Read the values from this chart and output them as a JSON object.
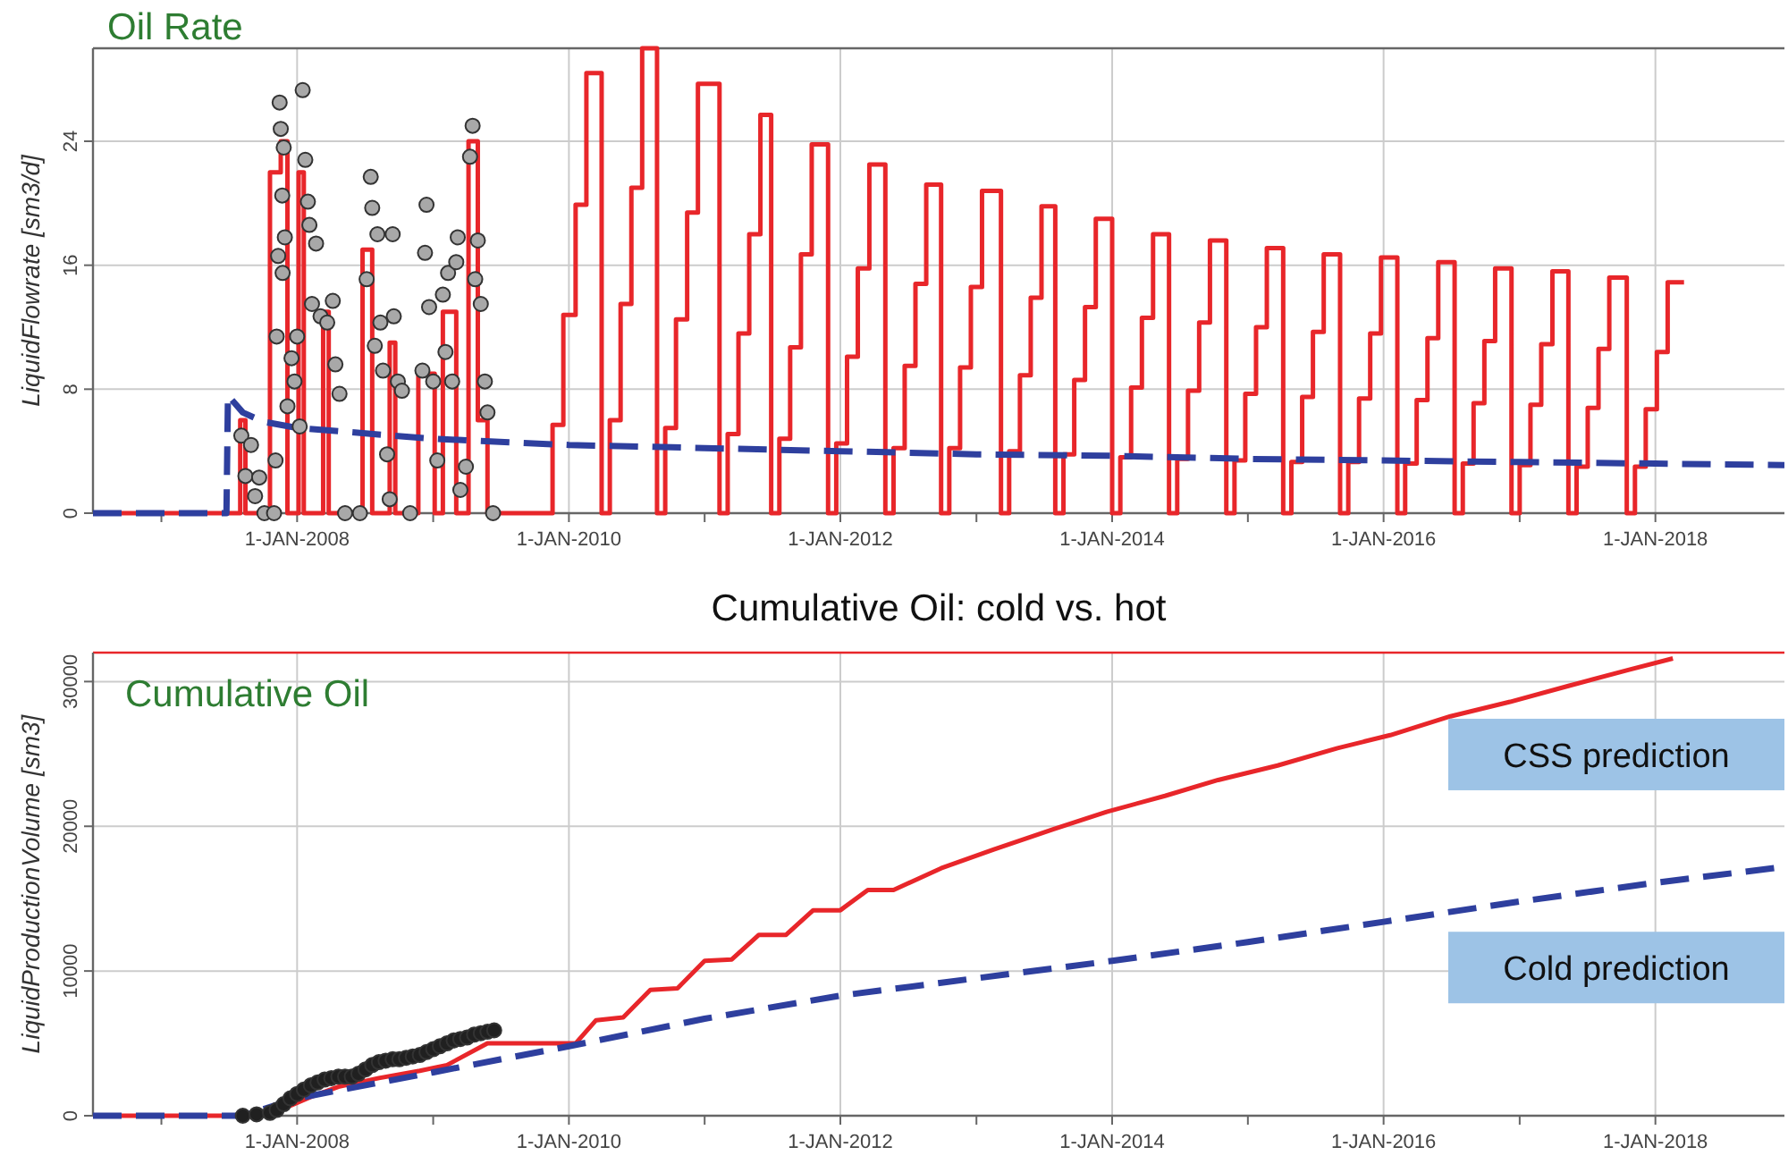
{
  "chart_data": [
    {
      "type": "line",
      "title": "Oil Rate",
      "ylabel": "LiquidFlowrate [sm3/d]",
      "xlim": [
        "2006-07-01",
        "2018-12-14"
      ],
      "ylim": [
        0,
        30
      ],
      "xticks": [
        {
          "value": "2007-01-01",
          "label": null
        },
        {
          "value": "2008-01-01",
          "label": "1-JAN-2008"
        },
        {
          "value": "2009-01-01",
          "label": null
        },
        {
          "value": "2010-01-01",
          "label": "1-JAN-2010"
        },
        {
          "value": "2011-01-01",
          "label": null
        },
        {
          "value": "2012-01-01",
          "label": "1-JAN-2012"
        },
        {
          "value": "2013-01-01",
          "label": null
        },
        {
          "value": "2014-01-01",
          "label": "1-JAN-2014"
        },
        {
          "value": "2015-01-01",
          "label": null
        },
        {
          "value": "2016-01-01",
          "label": "1-JAN-2016"
        },
        {
          "value": "2017-01-01",
          "label": null
        },
        {
          "value": "2018-01-01",
          "label": "1-JAN-2018"
        }
      ],
      "yticks": [
        0,
        8,
        16,
        24
      ],
      "grid": true,
      "series": [
        {
          "type": "step",
          "color": "#e8262a",
          "line_style": "solid",
          "x": [
            "2006-07-01",
            "2007-08-01",
            "2007-08-15",
            "2007-10-20",
            "2007-11-18",
            "2007-12-06",
            "2008-01-05",
            "2008-01-19",
            "2008-03-11",
            "2008-03-26",
            "2008-06-25",
            "2008-07-21",
            "2008-09-06",
            "2008-09-21",
            "2008-11-22",
            "2009-01-05",
            "2009-01-27",
            "2009-03-04",
            "2009-04-06",
            "2009-05-01",
            "2009-05-27",
            "2009-11-18",
            "2009-12-17",
            "2010-01-19",
            "2010-02-17",
            "2010-03-30",
            "2010-04-21",
            "2010-05-20",
            "2010-06-18",
            "2010-07-17",
            "2010-08-26",
            "2010-09-17",
            "2010-10-16",
            "2010-11-15",
            "2010-12-14",
            "2011-02-10",
            "2011-03-04",
            "2011-04-02",
            "2011-05-01",
            "2011-05-31",
            "2011-06-29",
            "2011-07-21",
            "2011-08-19",
            "2011-09-17",
            "2011-10-16",
            "2011-11-29",
            "2011-12-21",
            "2012-01-19",
            "2012-02-17",
            "2012-03-19",
            "2012-05-01",
            "2012-05-23",
            "2012-06-22",
            "2012-07-21",
            "2012-08-19",
            "2012-09-28",
            "2012-10-20",
            "2012-11-18",
            "2012-12-17",
            "2013-01-16",
            "2013-03-08",
            "2013-03-30",
            "2013-04-28",
            "2013-05-27",
            "2013-06-25",
            "2013-08-01",
            "2013-08-23",
            "2013-09-21",
            "2013-10-20",
            "2013-11-18",
            "2014-01-01",
            "2014-01-23",
            "2014-02-21",
            "2014-03-22",
            "2014-04-21",
            "2014-06-03",
            "2014-06-25",
            "2014-07-24",
            "2014-08-23",
            "2014-09-21",
            "2014-11-04",
            "2014-11-26",
            "2014-12-25",
            "2015-01-23",
            "2015-02-21",
            "2015-04-06",
            "2015-04-28",
            "2015-05-27",
            "2015-06-25",
            "2015-07-24",
            "2015-09-06",
            "2015-09-28",
            "2015-10-27",
            "2015-11-26",
            "2015-12-25",
            "2016-02-07",
            "2016-02-28",
            "2016-03-30",
            "2016-04-28",
            "2016-05-27",
            "2016-07-10",
            "2016-08-01",
            "2016-08-30",
            "2016-09-28",
            "2016-10-27",
            "2016-12-10",
            "2017-01-01",
            "2017-01-30",
            "2017-02-28",
            "2017-03-30",
            "2017-05-12",
            "2017-06-03",
            "2017-07-03",
            "2017-08-01",
            "2017-08-30",
            "2017-10-16",
            "2017-11-07",
            "2017-12-06",
            "2018-01-05",
            "2018-02-03",
            "2018-03-19"
          ],
          "values": [
            0,
            6,
            0,
            22,
            24,
            0,
            22,
            0,
            13,
            0,
            17,
            0,
            11,
            0,
            9,
            0,
            13,
            0,
            24,
            6,
            0,
            5.7,
            12.8,
            19.9,
            28.4,
            0,
            6,
            13.5,
            21,
            30,
            0,
            5.5,
            12.5,
            19.4,
            27.7,
            0,
            5.1,
            11.6,
            18,
            25.7,
            0,
            4.8,
            10.7,
            16.7,
            23.8,
            0,
            4.5,
            10.1,
            15.8,
            22.5,
            0,
            4.2,
            9.5,
            14.8,
            21.2,
            0,
            4.2,
            9.4,
            14.6,
            20.8,
            0,
            4,
            8.9,
            13.9,
            19.8,
            0,
            3.8,
            8.6,
            13.3,
            19,
            0,
            3.6,
            8.1,
            12.6,
            18,
            0,
            3.5,
            7.9,
            12.3,
            17.6,
            0,
            3.4,
            7.7,
            12,
            17.1,
            0,
            3.3,
            7.5,
            11.7,
            16.7,
            0,
            3.3,
            7.4,
            11.6,
            16.5,
            0,
            3.2,
            7.3,
            11.3,
            16.2,
            0,
            3.2,
            7.1,
            11.1,
            15.8,
            0,
            3.1,
            7,
            10.9,
            15.6,
            0,
            3,
            6.8,
            10.6,
            15.2,
            0,
            3,
            6.7,
            10.4,
            14.9,
            14.9
          ]
        },
        {
          "color": "#2e3f9e",
          "line_style": "dashed",
          "x": [
            "2006-07-01",
            "2007-06-25",
            "2007-06-29",
            "2007-08-08",
            "2007-10-02",
            "2008-01-01",
            "2009-01-01",
            "2010-01-01",
            "2011-01-01",
            "2012-01-01",
            "2013-01-01",
            "2014-01-01",
            "2015-01-01",
            "2016-01-01",
            "2017-01-01",
            "2018-01-01",
            "2018-12-14"
          ],
          "values": [
            0,
            0,
            7.6,
            6.5,
            5.9,
            5.5,
            4.8,
            4.4,
            4.2,
            4.0,
            3.8,
            3.7,
            3.5,
            3.4,
            3.3,
            3.2,
            3.1
          ]
        },
        {
          "type": "scatter",
          "color": "#a8a8a8",
          "marker": "circle",
          "x": [
            "2007-08-04",
            "2007-08-15",
            "2007-08-30",
            "2007-09-10",
            "2007-09-21",
            "2007-10-05",
            "2007-10-31",
            "2007-11-04",
            "2007-11-07",
            "2007-11-11",
            "2007-11-15",
            "2007-11-18",
            "2007-11-22",
            "2007-11-23",
            "2007-11-26",
            "2007-11-29",
            "2007-12-06",
            "2007-12-17",
            "2007-12-25",
            "2008-01-01",
            "2008-01-08",
            "2008-01-16",
            "2008-01-23",
            "2008-01-30",
            "2008-02-03",
            "2008-02-10",
            "2008-02-21",
            "2008-03-04",
            "2008-03-22",
            "2008-04-06",
            "2008-04-13",
            "2008-04-24",
            "2008-05-09",
            "2008-06-18",
            "2008-07-06",
            "2008-07-17",
            "2008-07-21",
            "2008-07-28",
            "2008-08-04",
            "2008-08-12",
            "2008-08-19",
            "2008-08-30",
            "2008-09-06",
            "2008-09-14",
            "2008-09-17",
            "2008-09-28",
            "2008-10-09",
            "2008-10-31",
            "2008-12-03",
            "2008-12-10",
            "2008-12-14",
            "2008-12-21",
            "2009-01-01",
            "2009-01-12",
            "2009-01-27",
            "2009-02-03",
            "2009-02-10",
            "2009-02-21",
            "2009-03-04",
            "2009-03-08",
            "2009-03-15",
            "2009-03-30",
            "2009-04-10",
            "2009-04-17",
            "2009-04-24",
            "2009-05-01",
            "2009-05-09",
            "2009-05-20",
            "2009-05-27",
            "2009-06-11"
          ],
          "values": [
            5.0,
            2.4,
            4.4,
            1.1,
            2.3,
            0,
            0,
            3.4,
            11.4,
            16.6,
            26.5,
            24.8,
            20.5,
            15.5,
            23.6,
            17.8,
            6.9,
            10.0,
            8.5,
            11.4,
            5.6,
            27.3,
            22.8,
            20.1,
            18.6,
            13.5,
            17.4,
            12.7,
            12.3,
            13.7,
            9.6,
            7.7,
            0,
            0,
            15.1,
            21.7,
            19.7,
            10.8,
            18.0,
            12.3,
            9.2,
            3.8,
            0.9,
            18.0,
            12.7,
            8.5,
            7.9,
            0,
            9.2,
            16.8,
            19.9,
            13.3,
            8.5,
            3.4,
            14.1,
            10.4,
            15.5,
            8.5,
            16.2,
            17.8,
            1.5,
            3.0,
            23.0,
            25.0,
            15.1,
            17.6,
            13.5,
            8.5,
            6.5,
            0
          ]
        }
      ]
    },
    {
      "type": "line",
      "title": "Cumulative Oil: cold vs. hot",
      "subtitle": "Cumulative Oil",
      "ylabel": "LiquidProductionVolume [sm3]",
      "xlim": [
        "2006-07-01",
        "2018-12-14"
      ],
      "ylim": [
        0,
        32000
      ],
      "xticks": [
        {
          "value": "2007-01-01",
          "label": null
        },
        {
          "value": "2008-01-01",
          "label": "1-JAN-2008"
        },
        {
          "value": "2009-01-01",
          "label": null
        },
        {
          "value": "2010-01-01",
          "label": "1-JAN-2010"
        },
        {
          "value": "2011-01-01",
          "label": null
        },
        {
          "value": "2012-01-01",
          "label": "1-JAN-2012"
        },
        {
          "value": "2013-01-01",
          "label": null
        },
        {
          "value": "2014-01-01",
          "label": "1-JAN-2014"
        },
        {
          "value": "2015-01-01",
          "label": null
        },
        {
          "value": "2016-01-01",
          "label": "1-JAN-2016"
        },
        {
          "value": "2017-01-01",
          "label": null
        },
        {
          "value": "2018-01-01",
          "label": "1-JAN-2018"
        }
      ],
      "yticks": [
        0,
        10000,
        20000,
        30000
      ],
      "grid": true,
      "annotations": [
        "CSS prediction",
        "Cold prediction"
      ],
      "series": [
        {
          "color": "#e8262a",
          "line_style": "solid",
          "x": [
            "2006-07-01",
            "2007-08-08",
            "2007-11-26",
            "2008-02-07",
            "2008-04-21",
            "2008-08-08",
            "2008-11-26",
            "2009-02-07",
            "2009-05-27",
            "2010-01-19",
            "2010-03-15",
            "2010-05-27",
            "2010-08-08",
            "2010-10-20",
            "2011-01-01",
            "2011-03-15",
            "2011-05-27",
            "2011-08-08",
            "2011-10-20",
            "2012-01-01",
            "2012-03-15",
            "2012-05-23",
            "2012-09-28",
            "2013-02-17",
            "2013-07-28",
            "2013-12-17",
            "2014-05-23",
            "2014-10-13",
            "2015-03-22",
            "2015-08-30",
            "2016-01-19",
            "2016-06-29",
            "2016-12-06",
            "2017-05-12",
            "2017-10-20",
            "2018-02-17"
          ],
          "values": [
            0,
            0,
            500,
            1300,
            2000,
            2600,
            3100,
            3500,
            5000,
            5000,
            6600,
            6800,
            8700,
            8800,
            10700,
            10800,
            12500,
            12500,
            14200,
            14200,
            15600,
            15600,
            17100,
            18400,
            19800,
            21000,
            22100,
            23200,
            24200,
            25400,
            26300,
            27600,
            28600,
            29700,
            30800,
            31600
          ]
        },
        {
          "color": "#2e3f9e",
          "line_style": "dashed",
          "x": [
            "2006-07-01",
            "2007-08-08",
            "2008-01-01",
            "2009-01-01",
            "2010-01-01",
            "2011-01-01",
            "2012-01-01",
            "2013-01-01",
            "2014-01-01",
            "2015-01-01",
            "2016-01-01",
            "2017-01-01",
            "2018-01-01",
            "2018-12-14"
          ],
          "values": [
            0,
            0,
            1200,
            3000,
            4800,
            6700,
            8300,
            9500,
            10700,
            12000,
            13400,
            14800,
            16100,
            17200
          ]
        },
        {
          "type": "scatter",
          "color": "#202020",
          "marker": "circle",
          "x": [
            "2007-08-08",
            "2007-09-14",
            "2007-10-20",
            "2007-11-07",
            "2007-11-26",
            "2007-12-14",
            "2008-01-01",
            "2008-01-19",
            "2008-02-07",
            "2008-02-25",
            "2008-03-15",
            "2008-04-02",
            "2008-04-21",
            "2008-05-09",
            "2008-05-27",
            "2008-06-14",
            "2008-07-03",
            "2008-07-21",
            "2008-08-08",
            "2008-08-26",
            "2008-09-14",
            "2008-10-02",
            "2008-10-20",
            "2008-11-07",
            "2008-11-26",
            "2008-12-14",
            "2009-01-01",
            "2009-01-19",
            "2009-02-07",
            "2009-02-25",
            "2009-03-15",
            "2009-04-02",
            "2009-04-21",
            "2009-05-09",
            "2009-05-27",
            "2009-06-14"
          ],
          "values": [
            0,
            100,
            200,
            400,
            800,
            1200,
            1500,
            1800,
            2100,
            2300,
            2500,
            2600,
            2700,
            2700,
            2700,
            2900,
            3200,
            3500,
            3700,
            3800,
            3900,
            3900,
            4000,
            4100,
            4200,
            4400,
            4600,
            4800,
            5000,
            5200,
            5300,
            5400,
            5600,
            5700,
            5800,
            5900
          ]
        }
      ]
    }
  ]
}
